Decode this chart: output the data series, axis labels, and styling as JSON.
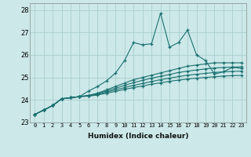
{
  "xlabel": "Humidex (Indice chaleur)",
  "background_color": "#cce8e8",
  "grid_color": "#aacece",
  "line_color": "#1a7070",
  "xlim": [
    -0.5,
    23.5
  ],
  "ylim": [
    23.0,
    28.3
  ],
  "yticks": [
    23,
    24,
    25,
    26,
    27,
    28
  ],
  "xticks": [
    0,
    1,
    2,
    3,
    4,
    5,
    6,
    7,
    8,
    9,
    10,
    11,
    12,
    13,
    14,
    15,
    16,
    17,
    18,
    19,
    20,
    21,
    22,
    23
  ],
  "lines": [
    [
      23.35,
      23.55,
      23.75,
      24.05,
      24.1,
      24.15,
      24.4,
      24.6,
      24.85,
      25.2,
      25.75,
      26.55,
      26.45,
      26.5,
      27.85,
      26.35,
      26.55,
      27.1,
      26.0,
      25.75,
      25.15,
      25.25,
      25.45,
      25.4
    ],
    [
      23.35,
      23.55,
      23.75,
      24.05,
      24.1,
      24.15,
      24.2,
      24.3,
      24.45,
      24.6,
      24.75,
      24.9,
      25.0,
      25.1,
      25.2,
      25.3,
      25.4,
      25.5,
      25.55,
      25.6,
      25.65,
      25.65,
      25.65,
      25.65
    ],
    [
      23.35,
      23.55,
      23.75,
      24.05,
      24.1,
      24.15,
      24.2,
      24.28,
      24.4,
      24.52,
      24.65,
      24.77,
      24.87,
      24.97,
      25.05,
      25.13,
      25.22,
      25.28,
      25.33,
      25.38,
      25.42,
      25.44,
      25.46,
      25.47
    ],
    [
      23.35,
      23.55,
      23.75,
      24.05,
      24.1,
      24.15,
      24.18,
      24.25,
      24.35,
      24.45,
      24.55,
      24.65,
      24.73,
      24.82,
      24.9,
      24.97,
      25.04,
      25.1,
      25.14,
      25.18,
      25.22,
      25.25,
      25.27,
      25.28
    ],
    [
      23.35,
      23.55,
      23.75,
      24.05,
      24.1,
      24.15,
      24.17,
      24.22,
      24.3,
      24.38,
      24.47,
      24.55,
      24.62,
      24.7,
      24.76,
      24.83,
      24.88,
      24.93,
      24.97,
      25.0,
      25.03,
      25.06,
      25.08,
      25.09
    ]
  ]
}
